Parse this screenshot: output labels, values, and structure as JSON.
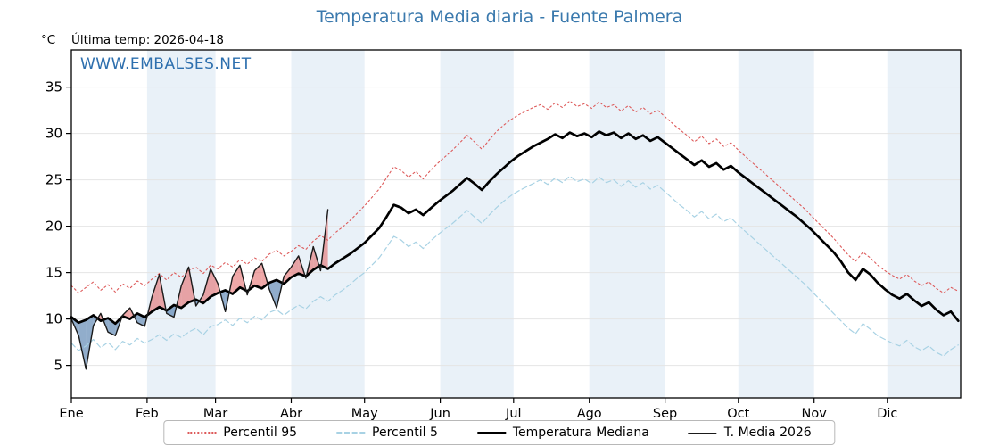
{
  "header": {
    "title": "Temperatura Media diaria - Fuente Palmera",
    "title_color": "#3a79ad",
    "y_unit": "°C",
    "last_temp_label": "Última temp: 2026-04-18",
    "watermark": "WWW.EMBALSES.NET",
    "watermark_color": "#2d6fae"
  },
  "legend": {
    "items": [
      {
        "label": "Percentil 95",
        "color": "#dd5a5a",
        "line_style": "dotted",
        "width": 2
      },
      {
        "label": "Percentil 5",
        "color": "#a8d2e4",
        "line_style": "dashed",
        "width": 2
      },
      {
        "label": "Temperatura Mediana",
        "color": "#000000",
        "line_style": "solid",
        "width": 3
      },
      {
        "label": "T. Media 2026",
        "color": "#1a1a1a",
        "line_style": "solid",
        "width": 1.5
      }
    ]
  },
  "chart_data": {
    "type": "line",
    "title": "Temperatura Media diaria - Fuente Palmera",
    "xlabel": "",
    "ylabel": "°C",
    "x_unit": "day_of_year",
    "xlim": [
      1,
      365
    ],
    "ylim": [
      1.5,
      39
    ],
    "yticks": [
      5,
      10,
      15,
      20,
      25,
      30,
      35
    ],
    "xticks": {
      "days": [
        1,
        32,
        60,
        91,
        121,
        152,
        182,
        213,
        244,
        274,
        305,
        335
      ],
      "labels": [
        "Ene",
        "Feb",
        "Mar",
        "Abr",
        "May",
        "Jun",
        "Jul",
        "Ago",
        "Sep",
        "Oct",
        "Nov",
        "Dic"
      ]
    },
    "shaded_month_indices": [
      1,
      3,
      5,
      7,
      9,
      11
    ],
    "band_fill": "#e9f1f8",
    "grid": true,
    "grid_color": "#e4e4e4",
    "legend_position": "bottom",
    "annotations": [
      "Última temp: 2026-04-18",
      "WWW.EMBALSES.NET"
    ],
    "fill_between": {
      "upper_series": "T. Media 2026",
      "lower_series": "Temperatura Mediana",
      "above_color": "rgba(228,110,110,0.6)",
      "below_color": "rgba(72,118,168,0.6)"
    },
    "series": [
      {
        "name": "Percentil 95",
        "color": "#dd5a5a",
        "line_style": "dotted",
        "width": 1.1,
        "x_start": 1,
        "x_step": 3,
        "values": [
          13.6,
          12.8,
          13.4,
          14.0,
          13.1,
          13.7,
          12.9,
          13.8,
          13.3,
          14.1,
          13.6,
          14.3,
          14.9,
          14.2,
          15.0,
          14.5,
          15.2,
          15.6,
          14.9,
          15.8,
          15.4,
          16.1,
          15.6,
          16.4,
          15.9,
          16.6,
          16.2,
          17.0,
          17.4,
          16.8,
          17.3,
          17.9,
          17.5,
          18.4,
          19.0,
          18.5,
          19.3,
          19.9,
          20.6,
          21.4,
          22.2,
          23.1,
          24.0,
          25.2,
          26.4,
          26.0,
          25.3,
          25.9,
          25.1,
          26.0,
          26.8,
          27.5,
          28.2,
          29.0,
          29.8,
          29.1,
          28.3,
          29.3,
          30.2,
          30.9,
          31.5,
          32.0,
          32.4,
          32.8,
          33.1,
          32.6,
          33.3,
          32.8,
          33.5,
          32.9,
          33.2,
          32.7,
          33.4,
          32.8,
          33.1,
          32.4,
          33.0,
          32.3,
          32.8,
          32.1,
          32.5,
          31.8,
          31.1,
          30.4,
          29.8,
          29.1,
          29.7,
          28.9,
          29.4,
          28.6,
          29.0,
          28.2,
          27.5,
          26.8,
          26.1,
          25.4,
          24.7,
          24.0,
          23.3,
          22.6,
          21.9,
          21.1,
          20.3,
          19.5,
          18.7,
          17.8,
          16.9,
          16.2,
          17.2,
          16.6,
          15.8,
          15.2,
          14.7,
          14.3,
          14.8,
          14.1,
          13.6,
          14.0,
          13.3,
          12.8,
          13.4,
          13.0
        ]
      },
      {
        "name": "Percentil 5",
        "color": "#a8d2e4",
        "line_style": "dashed",
        "width": 1.2,
        "x_start": 1,
        "x_step": 3,
        "values": [
          7.4,
          6.6,
          7.1,
          7.8,
          6.9,
          7.5,
          6.7,
          7.6,
          7.2,
          7.9,
          7.4,
          7.8,
          8.3,
          7.7,
          8.4,
          8.0,
          8.6,
          9.0,
          8.3,
          9.2,
          9.4,
          9.9,
          9.3,
          10.1,
          9.6,
          10.3,
          9.9,
          10.7,
          11.0,
          10.4,
          11.0,
          11.5,
          11.1,
          11.9,
          12.4,
          11.9,
          12.6,
          13.1,
          13.7,
          14.4,
          15.0,
          15.8,
          16.6,
          17.7,
          18.9,
          18.5,
          17.8,
          18.3,
          17.6,
          18.4,
          19.1,
          19.7,
          20.3,
          21.0,
          21.7,
          21.0,
          20.3,
          21.2,
          22.0,
          22.7,
          23.3,
          23.8,
          24.2,
          24.6,
          25.0,
          24.5,
          25.2,
          24.7,
          25.4,
          24.8,
          25.1,
          24.6,
          25.3,
          24.7,
          25.0,
          24.3,
          24.9,
          24.2,
          24.7,
          24.0,
          24.4,
          23.7,
          23.0,
          22.3,
          21.7,
          21.0,
          21.6,
          20.8,
          21.3,
          20.5,
          20.9,
          20.1,
          19.4,
          18.7,
          18.0,
          17.3,
          16.6,
          15.9,
          15.2,
          14.5,
          13.8,
          13.0,
          12.2,
          11.4,
          10.6,
          9.8,
          9.0,
          8.4,
          9.5,
          8.9,
          8.2,
          7.8,
          7.4,
          7.1,
          7.7,
          7.0,
          6.6,
          7.1,
          6.4,
          6.0,
          6.7,
          7.2
        ]
      },
      {
        "name": "Temperatura Mediana",
        "color": "#000000",
        "line_style": "solid",
        "width": 2.7,
        "x_start": 1,
        "x_step": 3,
        "values": [
          10.2,
          9.6,
          9.9,
          10.4,
          9.8,
          10.1,
          9.5,
          10.3,
          10.0,
          10.6,
          10.2,
          10.8,
          11.3,
          10.9,
          11.5,
          11.2,
          11.8,
          12.1,
          11.7,
          12.4,
          12.8,
          13.1,
          12.7,
          13.4,
          13.0,
          13.6,
          13.3,
          13.9,
          14.2,
          13.8,
          14.5,
          14.9,
          14.6,
          15.3,
          15.8,
          15.4,
          16.0,
          16.5,
          17.0,
          17.6,
          18.2,
          19.0,
          19.8,
          21.0,
          22.3,
          22.0,
          21.4,
          21.8,
          21.2,
          21.9,
          22.6,
          23.2,
          23.8,
          24.5,
          25.2,
          24.6,
          23.9,
          24.8,
          25.6,
          26.3,
          27.0,
          27.6,
          28.1,
          28.6,
          29.0,
          29.4,
          29.9,
          29.5,
          30.1,
          29.7,
          30.0,
          29.6,
          30.2,
          29.8,
          30.1,
          29.5,
          30.0,
          29.4,
          29.8,
          29.2,
          29.6,
          29.0,
          28.4,
          27.8,
          27.2,
          26.6,
          27.1,
          26.4,
          26.8,
          26.1,
          26.5,
          25.8,
          25.2,
          24.6,
          24.0,
          23.4,
          22.8,
          22.2,
          21.6,
          21.0,
          20.3,
          19.6,
          18.8,
          18.0,
          17.2,
          16.2,
          15.0,
          14.2,
          15.4,
          14.8,
          13.9,
          13.2,
          12.6,
          12.2,
          12.7,
          12.0,
          11.4,
          11.8,
          11.0,
          10.4,
          10.8,
          9.8
        ]
      },
      {
        "name": "T. Media 2026",
        "color": "#1a1a1a",
        "line_style": "solid",
        "width": 1.4,
        "x_start": 1,
        "x_step": 3,
        "values": [
          10.0,
          8.2,
          4.6,
          9.3,
          10.6,
          8.6,
          8.2,
          10.4,
          11.2,
          9.6,
          9.2,
          12.4,
          14.8,
          10.6,
          10.2,
          13.6,
          15.6,
          11.4,
          12.6,
          15.4,
          13.8,
          10.8,
          14.6,
          15.8,
          12.6,
          15.2,
          16.0,
          13.2,
          11.2,
          14.6,
          15.6,
          16.8,
          14.4,
          17.8,
          15.2,
          21.8
        ]
      }
    ]
  }
}
